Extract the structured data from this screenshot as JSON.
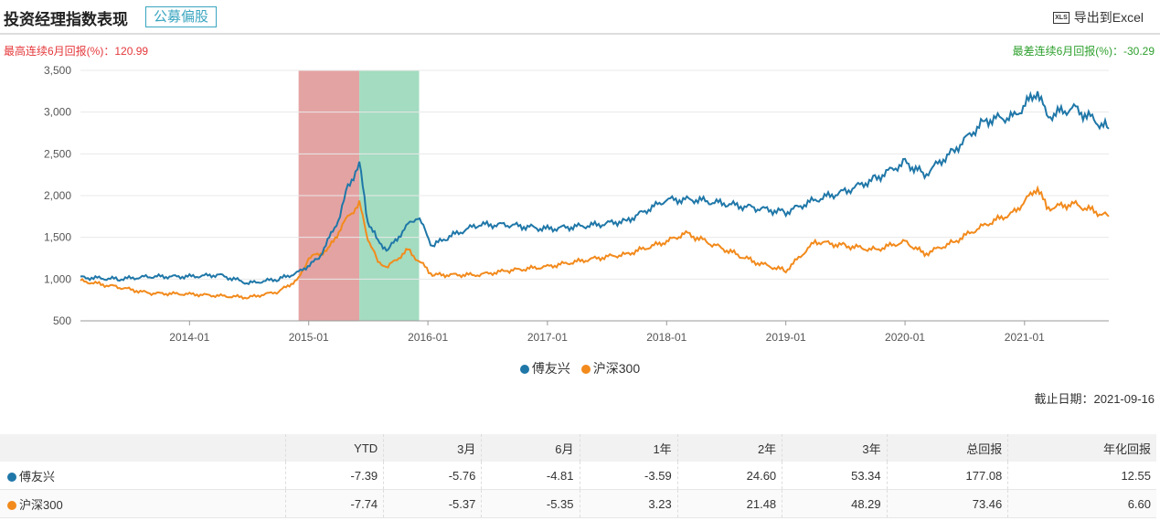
{
  "header": {
    "title": "投资经理指数表现",
    "tag": "公募偏股",
    "export_label": "导出到Excel",
    "export_icon": "xls-file-icon"
  },
  "best": {
    "label": "最高连续6月回报(%)：",
    "value": "120.99",
    "color": "#e5383b"
  },
  "worst": {
    "label": "最差连续6月回报(%)：",
    "value": "-30.29",
    "color": "#2ea02e"
  },
  "as_of": "截止日期：2021-09-16",
  "chart_data": {
    "type": "line",
    "xlim": [
      "2013-02-01",
      "2021-09-16"
    ],
    "ylim": [
      500,
      3500
    ],
    "yticks": [
      500,
      1000,
      1500,
      2000,
      2500,
      3000,
      3500
    ],
    "ytick_labels": [
      "500",
      "1,000",
      "1,500",
      "2,000",
      "2,500",
      "3,000",
      "3,500"
    ],
    "xticks": [
      "2014-01",
      "2015-01",
      "2016-01",
      "2017-01",
      "2018-01",
      "2019-01",
      "2020-01",
      "2021-01"
    ],
    "grid": true,
    "legend_position": "bottom",
    "bands": [
      {
        "start": "2014-12-01",
        "end": "2015-06-05",
        "color": "#e4a3a3"
      },
      {
        "start": "2015-06-05",
        "end": "2015-12-05",
        "color": "#a3dcc0"
      }
    ],
    "series": [
      {
        "name": "傅友兴",
        "color": "#1f77a8",
        "points": [
          [
            "2013-02-01",
            1020
          ],
          [
            "2013-06-01",
            1000
          ],
          [
            "2013-09-01",
            1030
          ],
          [
            "2014-01-01",
            1030
          ],
          [
            "2014-04-01",
            1050
          ],
          [
            "2014-07-01",
            950
          ],
          [
            "2014-10-01",
            1000
          ],
          [
            "2014-12-01",
            1080
          ],
          [
            "2015-02-01",
            1250
          ],
          [
            "2015-04-01",
            1700
          ],
          [
            "2015-05-01",
            2100
          ],
          [
            "2015-06-05",
            2380
          ],
          [
            "2015-07-01",
            1700
          ],
          [
            "2015-08-01",
            1450
          ],
          [
            "2015-09-01",
            1350
          ],
          [
            "2015-11-01",
            1650
          ],
          [
            "2015-12-01",
            1750
          ],
          [
            "2016-01-15",
            1400
          ],
          [
            "2016-03-01",
            1500
          ],
          [
            "2016-06-01",
            1650
          ],
          [
            "2016-09-01",
            1650
          ],
          [
            "2017-01-01",
            1600
          ],
          [
            "2017-06-01",
            1650
          ],
          [
            "2017-09-01",
            1700
          ],
          [
            "2018-01-01",
            1950
          ],
          [
            "2018-04-01",
            1950
          ],
          [
            "2018-07-01",
            1900
          ],
          [
            "2018-10-01",
            1850
          ],
          [
            "2019-01-01",
            1800
          ],
          [
            "2019-04-01",
            1950
          ],
          [
            "2019-07-01",
            2050
          ],
          [
            "2019-10-01",
            2200
          ],
          [
            "2020-01-01",
            2400
          ],
          [
            "2020-03-01",
            2250
          ],
          [
            "2020-06-01",
            2550
          ],
          [
            "2020-09-01",
            2900
          ],
          [
            "2020-12-01",
            2950
          ],
          [
            "2021-02-10",
            3250
          ],
          [
            "2021-03-10",
            2950
          ],
          [
            "2021-06-01",
            3050
          ],
          [
            "2021-09-16",
            2800
          ]
        ]
      },
      {
        "name": "沪深300",
        "color": "#f28a1c",
        "points": [
          [
            "2013-02-01",
            980
          ],
          [
            "2013-06-01",
            900
          ],
          [
            "2013-09-01",
            830
          ],
          [
            "2014-01-01",
            820
          ],
          [
            "2014-04-01",
            800
          ],
          [
            "2014-07-01",
            780
          ],
          [
            "2014-10-01",
            850
          ],
          [
            "2014-12-01",
            1000
          ],
          [
            "2015-01-01",
            1250
          ],
          [
            "2015-03-01",
            1350
          ],
          [
            "2015-05-01",
            1750
          ],
          [
            "2015-06-05",
            1900
          ],
          [
            "2015-07-01",
            1500
          ],
          [
            "2015-08-01",
            1200
          ],
          [
            "2015-09-01",
            1150
          ],
          [
            "2015-11-01",
            1350
          ],
          [
            "2016-01-15",
            1050
          ],
          [
            "2016-06-01",
            1050
          ],
          [
            "2016-09-01",
            1100
          ],
          [
            "2017-01-01",
            1150
          ],
          [
            "2017-06-01",
            1250
          ],
          [
            "2017-09-01",
            1300
          ],
          [
            "2018-01-01",
            1450
          ],
          [
            "2018-03-01",
            1550
          ],
          [
            "2018-06-01",
            1400
          ],
          [
            "2018-10-01",
            1200
          ],
          [
            "2019-01-01",
            1100
          ],
          [
            "2019-04-01",
            1450
          ],
          [
            "2019-07-01",
            1400
          ],
          [
            "2019-10-01",
            1350
          ],
          [
            "2020-01-01",
            1450
          ],
          [
            "2020-03-01",
            1300
          ],
          [
            "2020-06-01",
            1450
          ],
          [
            "2020-09-01",
            1650
          ],
          [
            "2020-12-01",
            1800
          ],
          [
            "2021-02-10",
            2100
          ],
          [
            "2021-03-10",
            1850
          ],
          [
            "2021-06-01",
            1900
          ],
          [
            "2021-09-16",
            1750
          ]
        ]
      }
    ]
  },
  "table": {
    "columns": [
      "",
      "YTD",
      "3月",
      "6月",
      "1年",
      "2年",
      "3年",
      "总回报",
      "年化回报"
    ],
    "rows": [
      {
        "name": "傅友兴",
        "color": "#1f77a8",
        "values": [
          "-7.39",
          "-5.76",
          "-4.81",
          "-3.59",
          "24.60",
          "53.34",
          "177.08",
          "12.55"
        ]
      },
      {
        "name": "沪深300",
        "color": "#f28a1c",
        "values": [
          "-7.74",
          "-5.37",
          "-5.35",
          "3.23",
          "21.48",
          "48.29",
          "73.46",
          "6.60"
        ]
      }
    ]
  }
}
